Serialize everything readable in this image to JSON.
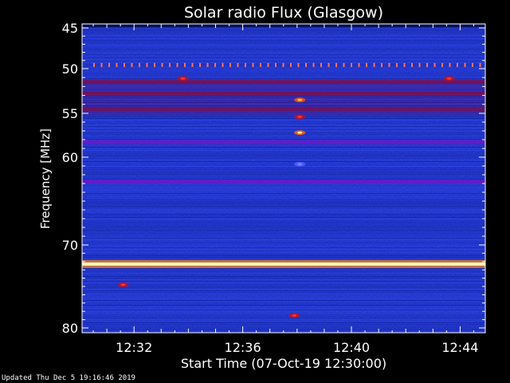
{
  "chart_data": {
    "type": "heatmap",
    "title": "Solar radio Flux (Glasgow)",
    "xlabel": "Start Time (07-Oct-19 12:30:00)",
    "ylabel": "Frequency [MHz]",
    "x_ticks": [
      "12:32",
      "12:36",
      "12:40",
      "12:44"
    ],
    "x_tick_minutes": [
      2,
      6,
      10,
      14
    ],
    "x_range_minutes": [
      0,
      15
    ],
    "y_ticks": [
      45,
      50,
      55,
      60,
      70,
      80
    ],
    "y_range_mhz": [
      45,
      80
    ],
    "y_axis_scale": "nonlinear (spacing compresses toward high frequency)",
    "colormap": [
      "#000050",
      "#1020c0",
      "#2a3ae8",
      "#6a10d0",
      "#b0102a",
      "#ff6a00",
      "#ffe040",
      "#ffffff"
    ],
    "background_level": "blue",
    "persistent_bands": [
      {
        "freq_mhz": 49.6,
        "intensity": "red dotted (periodic spikes)"
      },
      {
        "freq_mhz": 51.5,
        "intensity": "dark red"
      },
      {
        "freq_mhz": 52.8,
        "intensity": "dark red"
      },
      {
        "freq_mhz": 54.5,
        "intensity": "dark red"
      },
      {
        "freq_mhz": 58.3,
        "intensity": "purple"
      },
      {
        "freq_mhz": 62.8,
        "intensity": "purple"
      },
      {
        "freq_mhz": 72.3,
        "intensity": "yellow-white (strong)"
      }
    ],
    "bursts": [
      {
        "time_minute": 8.1,
        "freq_mhz": 53.5,
        "intensity": "orange-yellow"
      },
      {
        "time_minute": 8.1,
        "freq_mhz": 55.4,
        "intensity": "red"
      },
      {
        "time_minute": 8.1,
        "freq_mhz": 57.2,
        "intensity": "yellow"
      },
      {
        "time_minute": 8.1,
        "freq_mhz": 60.8,
        "intensity": "blue-purple"
      },
      {
        "time_minute": 1.6,
        "freq_mhz": 74.8,
        "intensity": "red"
      },
      {
        "time_minute": 7.9,
        "freq_mhz": 78.5,
        "intensity": "red"
      },
      {
        "time_minute": 3.8,
        "freq_mhz": 51.1,
        "intensity": "red"
      },
      {
        "time_minute": 13.6,
        "freq_mhz": 51.1,
        "intensity": "red"
      }
    ]
  },
  "footer": {
    "updated": "Updated Thu Dec  5 19:16:46 2019"
  }
}
